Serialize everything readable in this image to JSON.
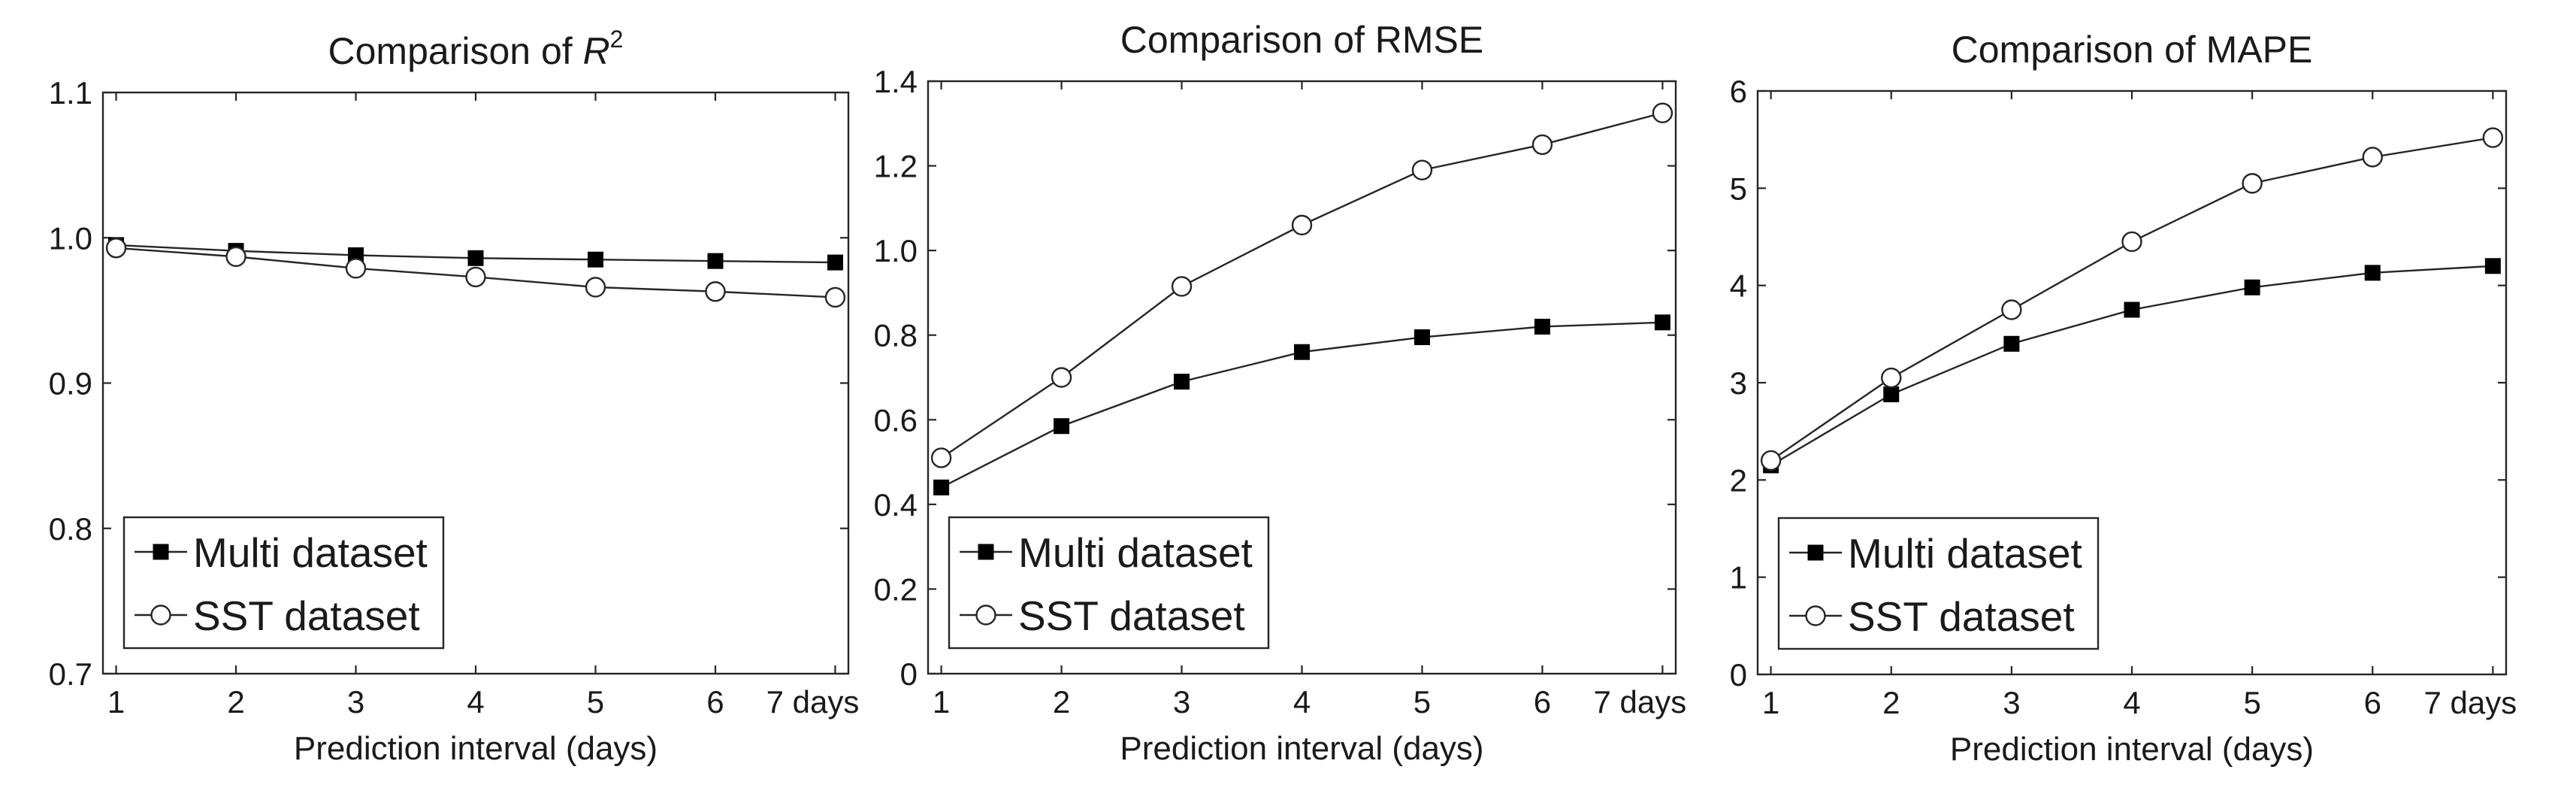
{
  "chart_data": [
    {
      "type": "line",
      "title_prefix": "Comparison of ",
      "title_var": "R",
      "title_sup": "2",
      "xlabel": "Prediction interval (days)",
      "ylabel": "",
      "categories": [
        "1",
        "2",
        "3",
        "4",
        "5",
        "6",
        "7 days"
      ],
      "x": [
        1,
        2,
        3,
        4,
        5,
        6,
        7
      ],
      "ylim": [
        0.7,
        1.1
      ],
      "yticks": [
        0.7,
        0.8,
        0.9,
        1.0,
        1.1
      ],
      "ytick_labels": [
        "0.7",
        "0.8",
        "0.9",
        "1.0",
        "1.1"
      ],
      "legend_position": "bottom-left",
      "series": [
        {
          "name": "Multi dataset",
          "marker": "square",
          "values": [
            0.995,
            0.991,
            0.988,
            0.986,
            0.985,
            0.984,
            0.983
          ]
        },
        {
          "name": "SST dataset",
          "marker": "circle",
          "values": [
            0.993,
            0.987,
            0.979,
            0.973,
            0.966,
            0.963,
            0.959
          ]
        }
      ]
    },
    {
      "type": "line",
      "title_prefix": "Comparison of RMSE",
      "title_var": "",
      "title_sup": "",
      "xlabel": "Prediction interval (days)",
      "ylabel": "",
      "categories": [
        "1",
        "2",
        "3",
        "4",
        "5",
        "6",
        "7 days"
      ],
      "x": [
        1,
        2,
        3,
        4,
        5,
        6,
        7
      ],
      "ylim": [
        0,
        1.4
      ],
      "yticks": [
        0,
        0.2,
        0.4,
        0.6,
        0.8,
        1.0,
        1.2,
        1.4
      ],
      "ytick_labels": [
        "0",
        "0.2",
        "0.4",
        "0.6",
        "0.8",
        "1.0",
        "1.2",
        "1.4"
      ],
      "legend_position": "bottom-left",
      "series": [
        {
          "name": "Multi dataset",
          "marker": "square",
          "values": [
            0.44,
            0.585,
            0.69,
            0.76,
            0.795,
            0.82,
            0.83
          ]
        },
        {
          "name": "SST dataset",
          "marker": "circle",
          "values": [
            0.51,
            0.7,
            0.915,
            1.06,
            1.19,
            1.25,
            1.325
          ]
        }
      ]
    },
    {
      "type": "line",
      "title_prefix": "Comparison of MAPE",
      "title_var": "",
      "title_sup": "",
      "xlabel": "Prediction interval (days)",
      "ylabel": "",
      "categories": [
        "1",
        "2",
        "3",
        "4",
        "5",
        "6",
        "7 days"
      ],
      "x": [
        1,
        2,
        3,
        4,
        5,
        6,
        7
      ],
      "ylim": [
        0,
        6
      ],
      "yticks": [
        0,
        1,
        2,
        3,
        4,
        5,
        6
      ],
      "ytick_labels": [
        "0",
        "1",
        "2",
        "3",
        "4",
        "5",
        "6"
      ],
      "legend_position": "bottom-left",
      "series": [
        {
          "name": "Multi dataset",
          "marker": "square",
          "values": [
            2.15,
            2.88,
            3.4,
            3.75,
            3.98,
            4.13,
            4.2
          ]
        },
        {
          "name": "SST dataset",
          "marker": "circle",
          "values": [
            2.2,
            3.05,
            3.75,
            4.45,
            5.05,
            5.32,
            5.52
          ]
        }
      ]
    }
  ]
}
